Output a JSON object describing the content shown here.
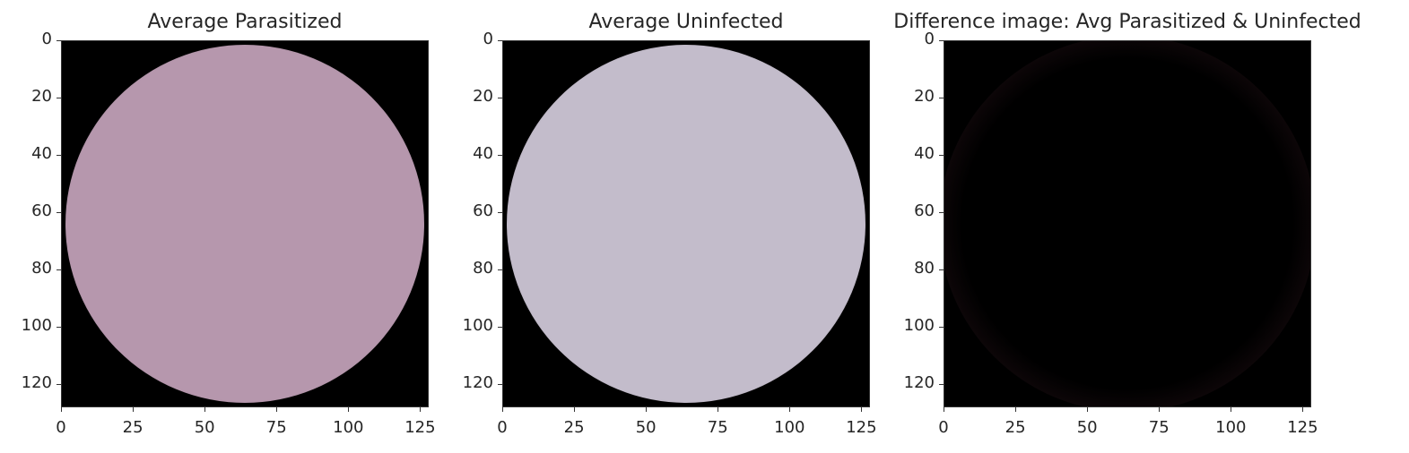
{
  "chart_data": [
    {
      "type": "heatmap",
      "title": "Average Parasitized",
      "xlabel": "",
      "ylabel": "",
      "x_ticks": [
        "0",
        "25",
        "50",
        "75",
        "100",
        "125"
      ],
      "y_ticks": [
        "0",
        "20",
        "40",
        "60",
        "80",
        "100",
        "120"
      ],
      "xlim": [
        0,
        128
      ],
      "ylim": [
        128,
        0
      ],
      "image_size": [
        128,
        128
      ],
      "center_color": "#b697ad",
      "edge_color": "#000000",
      "grid": false
    },
    {
      "type": "heatmap",
      "title": "Average Uninfected",
      "xlabel": "",
      "ylabel": "",
      "x_ticks": [
        "0",
        "25",
        "50",
        "75",
        "100",
        "125"
      ],
      "y_ticks": [
        "0",
        "20",
        "40",
        "60",
        "80",
        "100",
        "120"
      ],
      "xlim": [
        0,
        128
      ],
      "ylim": [
        128,
        0
      ],
      "image_size": [
        128,
        128
      ],
      "center_color": "#c3bccb",
      "edge_color": "#000000",
      "grid": false
    },
    {
      "type": "heatmap",
      "title": "Difference image: Avg Parasitized & Uninfected",
      "xlabel": "",
      "ylabel": "",
      "x_ticks": [
        "0",
        "25",
        "50",
        "75",
        "100",
        "125"
      ],
      "y_ticks": [
        "0",
        "20",
        "40",
        "60",
        "80",
        "100",
        "120"
      ],
      "xlim": [
        0,
        128
      ],
      "ylim": [
        128,
        0
      ],
      "image_size": [
        128,
        128
      ],
      "center_color": "#000000",
      "edge_color": "#1a0c10",
      "grid": false
    }
  ]
}
